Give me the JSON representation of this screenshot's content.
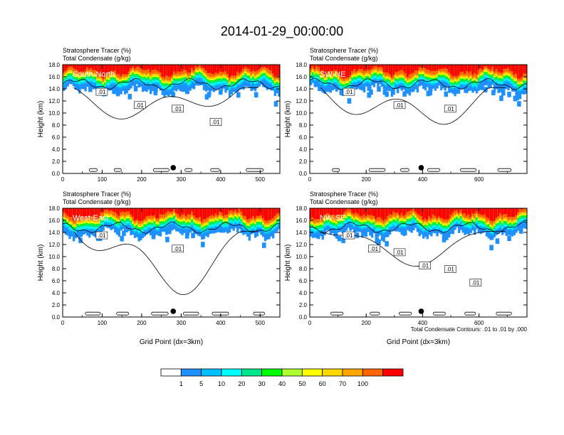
{
  "title": "2014-01-29_00:00:00",
  "chart_data": [
    {
      "type": "heatmap",
      "title_line1": "Stratosphere Tracer   (%)",
      "title_line2": "Total Condensate   (g/kg)",
      "panel_label": "South-North",
      "ylabel": "Height (km)",
      "xlabel": "",
      "xlim": [
        0,
        550
      ],
      "xticks": [
        "0",
        "100",
        "200",
        "300",
        "400",
        "500"
      ],
      "ylim": [
        0,
        18
      ],
      "yticks": [
        "0.0",
        "2.0",
        "4.0",
        "6.0",
        "8.0",
        "10.0",
        "12.0",
        "14.0",
        "16.0",
        "18.0"
      ],
      "marker_x": 280,
      "contour_labels": [
        ".01",
        ".01",
        ".01",
        ".01"
      ],
      "footnote": ""
    },
    {
      "type": "heatmap",
      "title_line1": "Stratosphere Tracer   (%)",
      "title_line2": "Total Condensate   (g/kg)",
      "panel_label": "SW-NE",
      "ylabel": "Height (km)",
      "xlabel": "",
      "xlim": [
        0,
        770
      ],
      "xticks": [
        "0",
        "200",
        "400",
        "600"
      ],
      "ylim": [
        0,
        18
      ],
      "yticks": [
        "0.0",
        "2.0",
        "4.0",
        "6.0",
        "8.0",
        "10.0",
        "12.0",
        "14.0",
        "16.0",
        "18.0"
      ],
      "marker_x": 395,
      "contour_labels": [
        ".01",
        ".01",
        ".01"
      ],
      "footnote": ""
    },
    {
      "type": "heatmap",
      "title_line1": "Stratosphere Tracer   (%)",
      "title_line2": "Total Condensate   (g/kg)",
      "panel_label": "West-East",
      "ylabel": "Height (km)",
      "xlabel": "Grid Point (dx=3km)",
      "xlim": [
        0,
        550
      ],
      "xticks": [
        "0",
        "100",
        "200",
        "300",
        "400",
        "500"
      ],
      "ylim": [
        0,
        18
      ],
      "yticks": [
        "0.0",
        "2.0",
        "4.0",
        "6.0",
        "8.0",
        "10.0",
        "12.0",
        "14.0",
        "16.0",
        "18.0"
      ],
      "marker_x": 280,
      "contour_labels": [
        ".01",
        ".01"
      ],
      "footnote": ""
    },
    {
      "type": "heatmap",
      "title_line1": "Stratosphere Tracer   (%)",
      "title_line2": "Total Condensate   (g/kg)",
      "panel_label": "NW-SE",
      "ylabel": "Height (km)",
      "xlabel": "Grid Point (dx=3km)",
      "xlim": [
        0,
        770
      ],
      "xticks": [
        "0",
        "200",
        "400",
        "600"
      ],
      "ylim": [
        0,
        18
      ],
      "yticks": [
        "0.0",
        "2.0",
        "4.0",
        "6.0",
        "8.0",
        "10.0",
        "12.0",
        "14.0",
        "16.0",
        "18.0"
      ],
      "marker_x": 395,
      "contour_labels": [
        ".01",
        ".01",
        ".01",
        ".01",
        ".01",
        ".01"
      ],
      "footnote": "Total Condensate Contours: .01 to .01 by .000"
    }
  ],
  "colorbar": {
    "colors": [
      "#ffffff",
      "#1e90ff",
      "#00bfff",
      "#00ffff",
      "#00e68a",
      "#00ff00",
      "#adff2f",
      "#ffff00",
      "#ffd700",
      "#ffa500",
      "#ff6600",
      "#ff0000"
    ],
    "labels": [
      "1",
      "5",
      "10",
      "20",
      "30",
      "40",
      "50",
      "60",
      "70",
      "100"
    ]
  }
}
